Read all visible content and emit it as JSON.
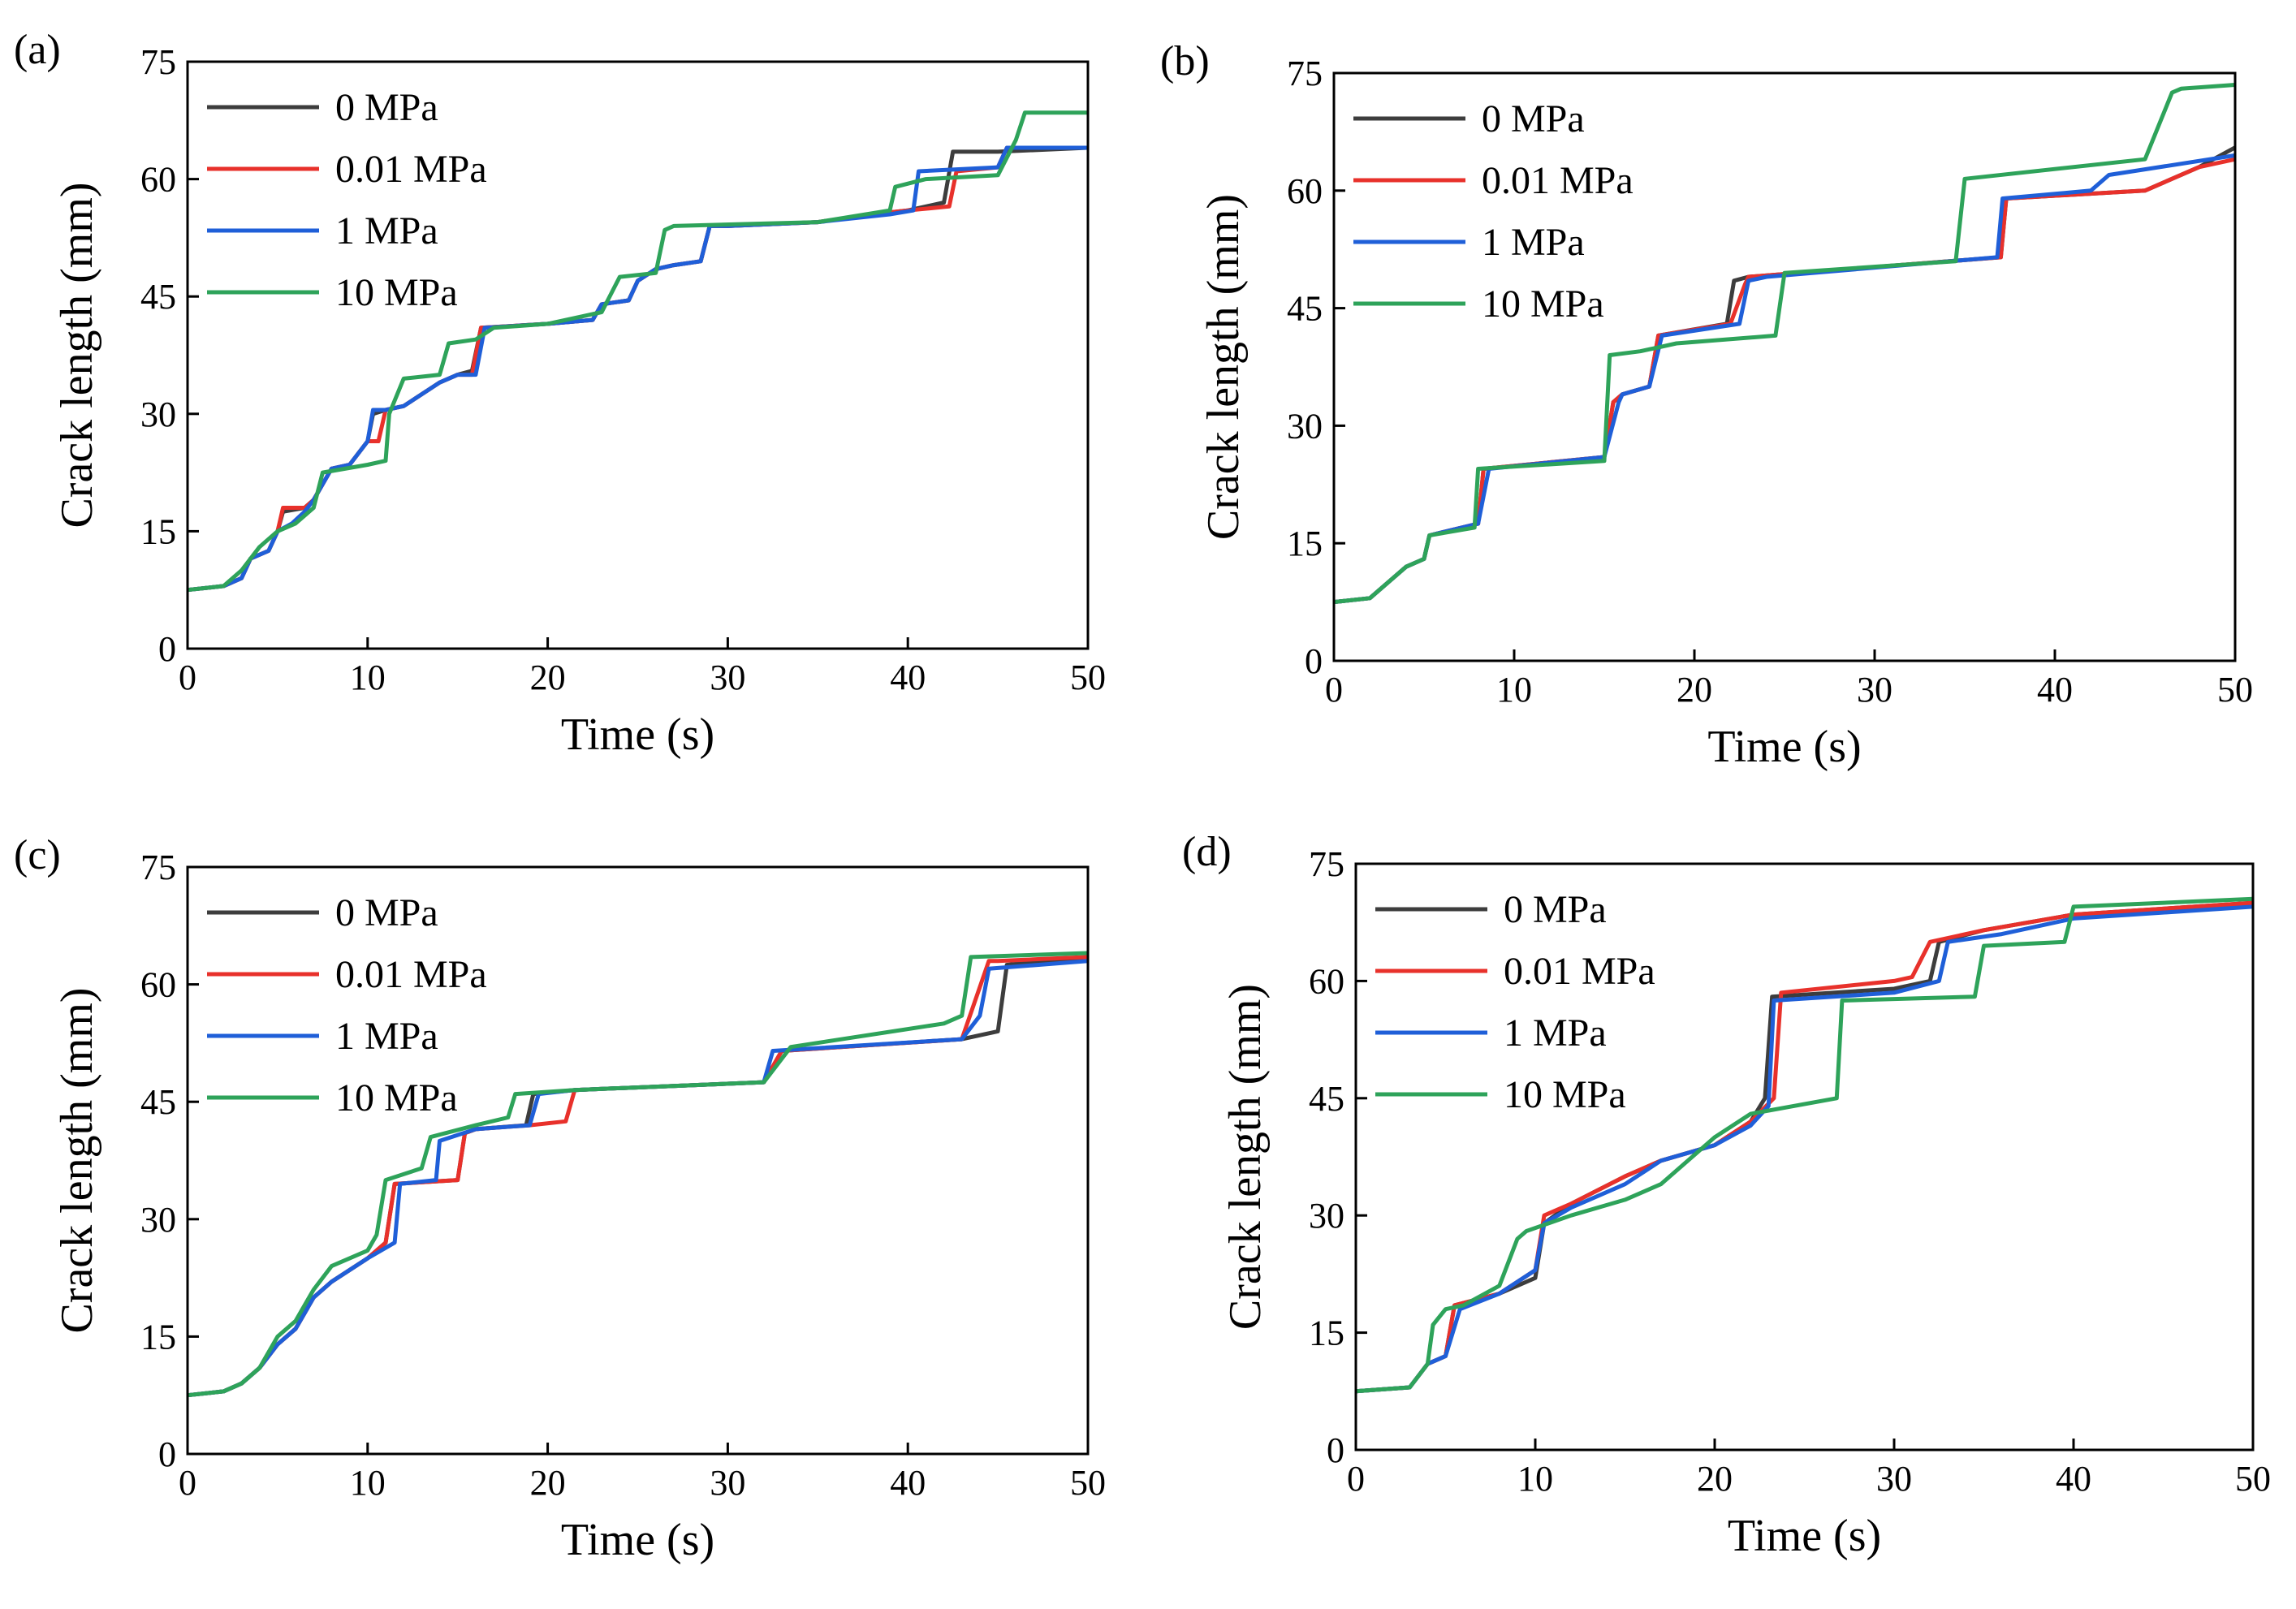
{
  "chart_data": [
    {
      "type": "line",
      "label": "(a)",
      "x_label": "Time (s)",
      "y_label": "Crack length (mm)",
      "xlim": [
        0,
        50
      ],
      "ylim": [
        0,
        75
      ],
      "xticks": [
        0,
        10,
        20,
        30,
        40,
        50
      ],
      "yticks": [
        0,
        15,
        30,
        45,
        60,
        75
      ],
      "legend": "upper left",
      "grid": false,
      "series": [
        {
          "name": "0 MPa",
          "color": "#3d3d3d",
          "x": [
            0,
            2,
            3,
            3.5,
            4.5,
            5,
            5.3,
            6.5,
            7,
            8,
            9,
            10,
            10.3,
            11,
            12,
            14,
            15,
            15.8,
            16.3,
            20,
            22.5,
            23,
            24.5,
            25,
            26,
            27,
            28.5,
            29,
            30,
            35,
            38,
            40,
            42,
            42.5,
            45,
            50
          ],
          "values": [
            7.5,
            8,
            9,
            11.5,
            12.5,
            15,
            17.5,
            18,
            19,
            23,
            23.5,
            26.5,
            30,
            30.5,
            31,
            34,
            35,
            35.5,
            41,
            41.5,
            42,
            44,
            44.5,
            47,
            48.5,
            49,
            49.5,
            54,
            54,
            54.5,
            55.5,
            56,
            57,
            63.5,
            63.5,
            64
          ]
        },
        {
          "name": "0.01 MPa",
          "color": "#e8312b",
          "x": [
            0,
            2,
            3,
            3.5,
            4.5,
            5,
            5.3,
            6.5,
            7,
            8,
            9,
            10,
            10.6,
            11,
            12,
            14,
            15,
            15.8,
            16.3,
            20,
            22.5,
            23,
            24.5,
            25,
            26,
            27,
            28.5,
            29,
            30,
            35,
            38,
            40,
            42.3,
            42.7,
            45,
            45.5,
            50
          ],
          "values": [
            7.5,
            8,
            9,
            11.5,
            12.5,
            15,
            18,
            18,
            19,
            23,
            23.5,
            26.5,
            26.5,
            30.5,
            31,
            34,
            35,
            35,
            41,
            41.5,
            42,
            44,
            44.5,
            47,
            48.5,
            49,
            49.5,
            54,
            54,
            54.5,
            55.5,
            56,
            56.5,
            61,
            61.5,
            64,
            64
          ]
        },
        {
          "name": "1 MPa",
          "color": "#1f5fd8",
          "x": [
            0,
            2,
            3,
            3.5,
            4.5,
            5,
            5.8,
            6.5,
            7,
            8,
            9,
            10,
            10.3,
            11,
            12,
            14,
            15,
            16,
            16.5,
            20,
            22.5,
            23,
            24.5,
            25,
            26,
            27,
            28.5,
            29,
            30,
            35,
            39,
            40.3,
            40.6,
            45,
            45.5,
            50
          ],
          "values": [
            7.5,
            8,
            9,
            11.5,
            12.5,
            15,
            16,
            17.5,
            19,
            23,
            23.5,
            26.5,
            30.5,
            30.5,
            31,
            34,
            35,
            35,
            41,
            41.5,
            42,
            44,
            44.5,
            47,
            48.5,
            49,
            49.5,
            54,
            54,
            54.5,
            55.5,
            56,
            61,
            61.5,
            64,
            64
          ]
        },
        {
          "name": "10 MPa",
          "color": "#2ea35a",
          "x": [
            0,
            2,
            3,
            4,
            5,
            6,
            7,
            7.5,
            10,
            11,
            11.2,
            12,
            14,
            14.5,
            16,
            17,
            20,
            22,
            23,
            24,
            26,
            26.5,
            27,
            35,
            39,
            39.3,
            41,
            45,
            46,
            46.5,
            50
          ],
          "values": [
            7.5,
            8,
            10,
            13,
            15,
            16,
            18,
            22.5,
            23.5,
            24,
            30,
            34.5,
            35,
            39,
            39.5,
            41,
            41.5,
            42.5,
            43,
            47.5,
            48,
            53.5,
            54,
            54.5,
            56,
            59,
            60,
            60.5,
            65,
            68.5,
            68.5
          ]
        }
      ]
    },
    {
      "type": "line",
      "label": "(b)",
      "x_label": "Time (s)",
      "y_label": "Crack length (mm)",
      "xlim": [
        0,
        50
      ],
      "ylim": [
        0,
        75
      ],
      "xticks": [
        0,
        10,
        20,
        30,
        40,
        50
      ],
      "yticks": [
        0,
        15,
        30,
        45,
        60,
        75
      ],
      "legend": "upper left",
      "grid": false,
      "series": [
        {
          "name": "0 MPa",
          "color": "#3d3d3d",
          "x": [
            0,
            2,
            3,
            4,
            5,
            5.3,
            8,
            8.3,
            15,
            15.5,
            16,
            17.5,
            18,
            21.8,
            22.2,
            23,
            37,
            37.3,
            45,
            48,
            50
          ],
          "values": [
            7.5,
            8,
            10,
            12,
            13,
            16,
            17.5,
            24.5,
            26,
            33,
            34,
            35,
            41.5,
            43,
            48.5,
            49,
            51.5,
            59,
            60,
            63,
            65.5
          ]
        },
        {
          "name": "0.01 MPa",
          "color": "#e8312b",
          "x": [
            0,
            2,
            3,
            4,
            5,
            5.3,
            8,
            8.3,
            15,
            15.5,
            16,
            17.5,
            18,
            22,
            22.8,
            23,
            37,
            37.3,
            45,
            48,
            50
          ],
          "values": [
            7.5,
            8,
            10,
            12,
            13,
            16,
            17.5,
            24.5,
            26,
            33,
            34,
            35,
            41.5,
            43,
            48,
            49,
            51.5,
            59,
            60,
            63,
            64
          ]
        },
        {
          "name": "1 MPa",
          "color": "#1f5fd8",
          "x": [
            0,
            2,
            3,
            4,
            5,
            5.3,
            8,
            8.6,
            15,
            15.8,
            16,
            17.5,
            18.2,
            22.5,
            23,
            24,
            36.8,
            37.1,
            42,
            43,
            50
          ],
          "values": [
            7.5,
            8,
            10,
            12,
            13,
            16,
            17.5,
            24.5,
            26,
            33,
            34,
            35,
            41.5,
            43,
            48.5,
            49,
            51.5,
            59,
            60,
            62,
            64.5
          ]
        },
        {
          "name": "10 MPa",
          "color": "#2ea35a",
          "x": [
            0,
            2,
            3,
            4,
            5,
            5.3,
            7.8,
            8,
            15,
            15.3,
            17,
            18,
            19,
            24.5,
            25,
            34.5,
            35,
            45,
            46.5,
            47,
            50
          ],
          "values": [
            7.5,
            8,
            10,
            12,
            13,
            16,
            17,
            24.5,
            25.5,
            39,
            39.5,
            40,
            40.5,
            41.5,
            49.5,
            51,
            61.5,
            64,
            72.5,
            73,
            73.5
          ]
        }
      ]
    },
    {
      "type": "line",
      "label": "(c)",
      "x_label": "Time (s)",
      "y_label": "Crack length (mm)",
      "xlim": [
        0,
        50
      ],
      "ylim": [
        0,
        75
      ],
      "xticks": [
        0,
        10,
        20,
        30,
        40,
        50
      ],
      "yticks": [
        0,
        15,
        30,
        45,
        60,
        75
      ],
      "legend": "upper left",
      "grid": false,
      "series": [
        {
          "name": "0 MPa",
          "color": "#3d3d3d",
          "x": [
            0,
            2,
            3,
            4,
            5,
            6,
            7,
            8,
            10,
            11,
            11.5,
            15,
            15.4,
            16,
            18.8,
            19.2,
            21.5,
            32,
            33,
            43,
            45,
            45.5,
            50
          ],
          "values": [
            7.5,
            8,
            9,
            11,
            14,
            16,
            20,
            22,
            25,
            27,
            34.5,
            35,
            41,
            41.5,
            42,
            46,
            46.5,
            47.5,
            51.5,
            53,
            54,
            62.5,
            63.5
          ]
        },
        {
          "name": "0.01 MPa",
          "color": "#e8312b",
          "x": [
            0,
            2,
            3,
            4,
            5,
            6,
            7,
            8,
            10,
            11,
            11.5,
            15,
            15.4,
            16,
            19,
            21,
            21.5,
            32,
            33,
            43,
            44.5,
            45,
            50
          ],
          "values": [
            7.5,
            8,
            9,
            11,
            14,
            16,
            20,
            22,
            25,
            27,
            34.5,
            35,
            41,
            41.5,
            42,
            42.5,
            46.5,
            47.5,
            51.5,
            53,
            63,
            63,
            63.5
          ]
        },
        {
          "name": "1 MPa",
          "color": "#1f5fd8",
          "x": [
            0,
            2,
            3,
            4,
            5,
            6,
            7,
            8,
            10,
            11.5,
            11.8,
            13.8,
            14,
            16,
            19,
            19.5,
            21.5,
            32,
            32.5,
            43,
            44,
            44.5,
            50
          ],
          "values": [
            7.5,
            8,
            9,
            11,
            14,
            16,
            20,
            22,
            25,
            27,
            34.5,
            35,
            40,
            41.5,
            42,
            46,
            46.5,
            47.5,
            51.5,
            53,
            56,
            62,
            63
          ]
        },
        {
          "name": "10 MPa",
          "color": "#2ea35a",
          "x": [
            0,
            2,
            3,
            4,
            5,
            6,
            7,
            8,
            10,
            10.5,
            11,
            13,
            13.5,
            16,
            17.8,
            18.2,
            21.5,
            32,
            33.5,
            42,
            43,
            43.5,
            50
          ],
          "values": [
            7.5,
            8,
            9,
            11,
            15,
            17,
            21,
            24,
            26,
            28,
            35,
            36.5,
            40.5,
            42,
            43,
            46,
            46.5,
            47.5,
            52,
            55,
            56,
            63.5,
            64
          ]
        }
      ]
    },
    {
      "type": "line",
      "label": "(d)",
      "x_label": "Time (s)",
      "y_label": "Crack length (mm)",
      "xlim": [
        0,
        50
      ],
      "ylim": [
        0,
        75
      ],
      "xticks": [
        0,
        10,
        20,
        30,
        40,
        50
      ],
      "yticks": [
        0,
        15,
        30,
        45,
        60,
        75
      ],
      "legend": "upper left",
      "grid": false,
      "series": [
        {
          "name": "0 MPa",
          "color": "#3d3d3d",
          "x": [
            0,
            3,
            4,
            5,
            5.5,
            8,
            10,
            10.5,
            12,
            15,
            17,
            20,
            22,
            22.8,
            23.2,
            30,
            32,
            32.5,
            35,
            40,
            50
          ],
          "values": [
            7.5,
            8,
            11,
            12,
            18.5,
            20,
            22,
            29,
            31.5,
            35,
            37,
            39,
            42,
            45,
            58,
            59,
            60,
            65,
            66.5,
            68.5,
            70
          ]
        },
        {
          "name": "0.01 MPa",
          "color": "#e8312b",
          "x": [
            0,
            3,
            4,
            5,
            5.5,
            8,
            10,
            10.5,
            12,
            15,
            17,
            20,
            22,
            23.3,
            23.7,
            30,
            31,
            32,
            35,
            40,
            50
          ],
          "values": [
            7.5,
            8,
            11,
            12,
            18.5,
            20,
            23,
            30,
            31.5,
            35,
            37,
            39,
            42,
            45,
            58.5,
            60,
            60.5,
            65,
            66.5,
            68.5,
            70
          ]
        },
        {
          "name": "1 MPa",
          "color": "#1f5fd8",
          "x": [
            0,
            3,
            4,
            5,
            5.8,
            8,
            10,
            10.5,
            12,
            15,
            17,
            20,
            22,
            23,
            23.3,
            30,
            32.5,
            33,
            36,
            40,
            50
          ],
          "values": [
            7.5,
            8,
            11,
            12,
            18,
            20,
            23,
            29,
            31,
            34,
            37,
            39,
            41.5,
            44,
            57.5,
            58.5,
            60,
            65,
            66,
            68,
            69.5
          ]
        },
        {
          "name": "10 MPa",
          "color": "#2ea35a",
          "x": [
            0,
            3,
            4,
            4.3,
            5,
            6,
            8,
            9,
            9.5,
            12,
            15,
            17,
            20,
            22,
            26.8,
            27.1,
            34.5,
            35,
            39.5,
            40,
            50
          ],
          "values": [
            7.5,
            8,
            11,
            16,
            18,
            18.5,
            21,
            27,
            28,
            30,
            32,
            34,
            40,
            43,
            45,
            57.5,
            58,
            64.5,
            65,
            69.5,
            70.5
          ]
        }
      ]
    }
  ]
}
